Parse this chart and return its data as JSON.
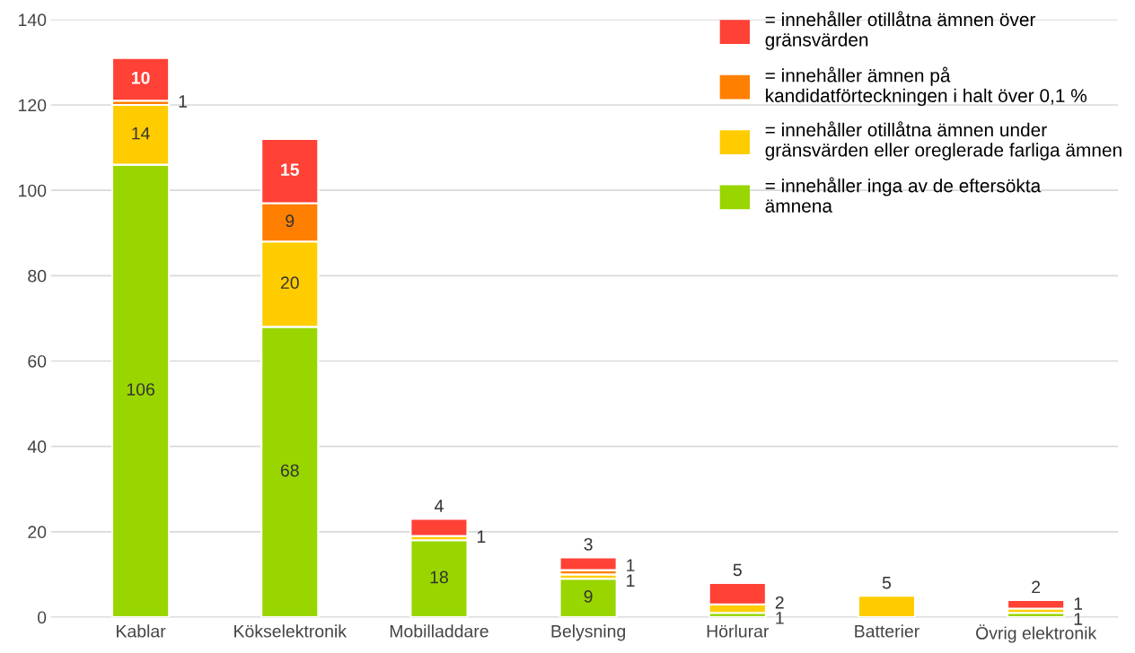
{
  "chart_data": {
    "type": "bar",
    "stacked": true,
    "categories": [
      "Kablar",
      "Kökselektronik",
      "Mobilladdare",
      "Belysning",
      "Hörlurar",
      "Batterier",
      "Övrig elektronik"
    ],
    "series": [
      {
        "name": "= innehåller inga av de eftersökta\nämnena",
        "color": "#99d600",
        "values": [
          106,
          68,
          18,
          9,
          1,
          null,
          1
        ],
        "value_labels": [
          "106",
          "68",
          "18",
          "9",
          "1",
          null,
          "1"
        ]
      },
      {
        "name": "= innehåller otillåtna ämnen under\ngränsvärden eller oreglerade farliga ämnen",
        "color": "#ffcc00",
        "values": [
          14,
          20,
          1,
          1,
          2,
          5,
          1
        ],
        "value_labels": [
          "14",
          "20",
          "1",
          "1",
          "2",
          "5",
          "1"
        ]
      },
      {
        "name": "= innehåller ämnen på\nkandidatförteckningen i halt över 0,1 %",
        "color": "#ff7f00",
        "values": [
          1,
          9,
          null,
          1,
          null,
          null,
          null
        ],
        "value_labels": [
          "1",
          "9",
          null,
          "1",
          null,
          null,
          null
        ]
      },
      {
        "name": "= innehåller otillåtna ämnen över\ngränsvärden",
        "color": "#ff4136",
        "values": [
          10,
          15,
          4,
          3,
          5,
          null,
          2
        ],
        "value_labels": [
          "10",
          "15",
          "4",
          "3",
          "5",
          null,
          "2"
        ]
      }
    ],
    "ylim": [
      0,
      140
    ],
    "yticks": [
      0,
      20,
      40,
      60,
      80,
      100,
      120,
      140
    ],
    "grid": "y",
    "legend": "top right"
  }
}
